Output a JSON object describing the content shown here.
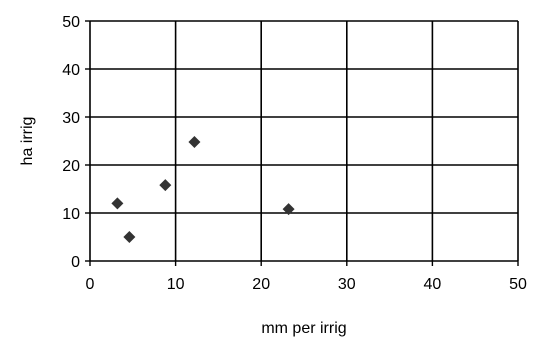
{
  "chart_data": {
    "type": "scatter",
    "title": "",
    "xlabel": "mm per irrig",
    "ylabel": "ha irrig",
    "xlim": [
      0,
      50
    ],
    "ylim": [
      0,
      50
    ],
    "xticks": [
      0,
      10,
      20,
      30,
      40,
      50
    ],
    "yticks": [
      0,
      10,
      20,
      30,
      40,
      50
    ],
    "xtick_labels": [
      "0",
      "10",
      "20",
      "30",
      "40",
      "50"
    ],
    "ytick_labels": [
      "0",
      "10",
      "20",
      "30",
      "40",
      "50"
    ],
    "grid": true,
    "legend": "none",
    "marker": "diamond",
    "marker_color": "#333333",
    "points": [
      {
        "x": 3.2,
        "y": 12.0
      },
      {
        "x": 4.6,
        "y": 5.0
      },
      {
        "x": 8.8,
        "y": 15.8
      },
      {
        "x": 12.2,
        "y": 24.8
      },
      {
        "x": 23.2,
        "y": 10.8
      }
    ]
  }
}
